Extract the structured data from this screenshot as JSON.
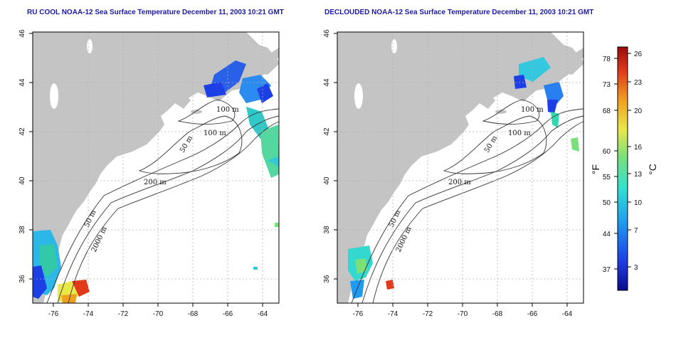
{
  "panels": [
    {
      "title": "RU COOL NOAA-12 Sea Surface Temperature December 11, 2003 10:21 GMT",
      "x_ticks": [
        "-76",
        "-74",
        "-72",
        "-70",
        "-68",
        "-66",
        "-64"
      ],
      "y_ticks": [
        "36",
        "38",
        "40",
        "42",
        "44",
        "46"
      ],
      "contour_labels": [
        "100 m",
        "100 m",
        "50 m",
        "200 m",
        "50 m",
        "2000 m"
      ]
    },
    {
      "title": "DECLOUDED NOAA-12 Sea Surface Temperature December 11, 2003 10:21 GMT",
      "x_ticks": [
        "-76",
        "-74",
        "-72",
        "-70",
        "-68",
        "-66",
        "-64"
      ],
      "y_ticks": [
        "36",
        "38",
        "40",
        "42",
        "44",
        "46"
      ],
      "contour_labels": [
        "100 m",
        "100 m",
        "50 m",
        "200 m",
        "50 m",
        "2000 m"
      ]
    }
  ],
  "colorbar": {
    "fahrenheit_ticks": [
      "78",
      "73",
      "68",
      "60",
      "55",
      "50",
      "44",
      "37"
    ],
    "celsius_ticks": [
      "26",
      "23",
      "20",
      "16",
      "13",
      "10",
      "7",
      "3"
    ],
    "fahrenheit_unit": "°F",
    "celsius_unit": "°C",
    "colors": [
      "#0a0a8c",
      "#1d3fe6",
      "#1e9bf0",
      "#33e0d0",
      "#7be07a",
      "#e8e84a",
      "#f0a020",
      "#e03a1a",
      "#9a0b0b"
    ]
  },
  "colors": {
    "land": "#c4c4c4",
    "title": "#1a1aa6",
    "grid": "#b0b0b0"
  }
}
